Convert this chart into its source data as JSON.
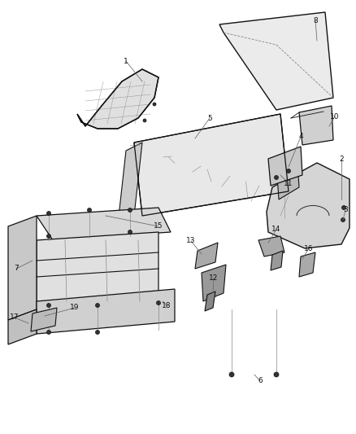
{
  "bg_color": "#ffffff",
  "line_color": "#111111",
  "label_color": "#111111",
  "fig_width": 4.38,
  "fig_height": 5.33,
  "dpi": 100,
  "gray_fill": "#d8d8d8",
  "dark_gray": "#555555",
  "mid_gray": "#888888"
}
